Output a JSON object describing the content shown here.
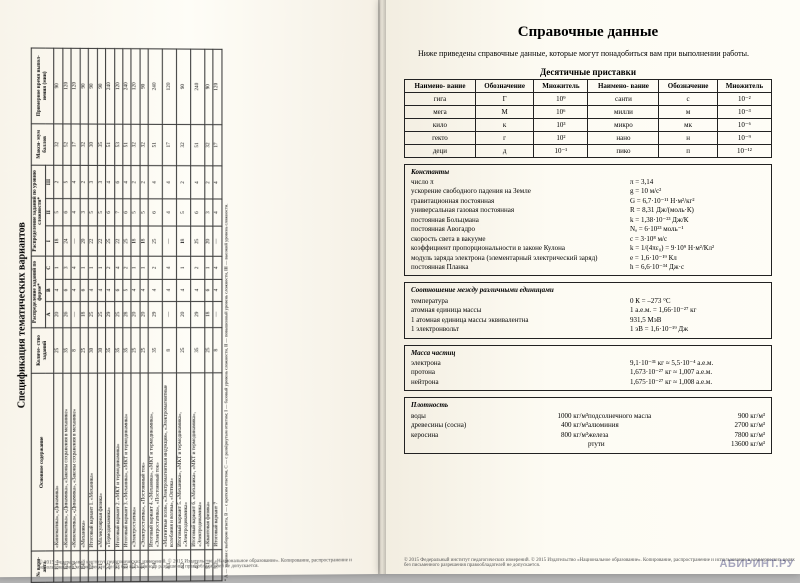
{
  "left": {
    "title": "Спецификация тематических вариантов",
    "headers": {
      "num": "№ вари-\nанта",
      "content": "Основное содержание",
      "count": "Количе-\nство\nзаданий",
      "byform": "Распределение\nзаданий по форме*",
      "bylevel": "Распределение заданий\nпо уровню сложности*",
      "max": "Макси-\nмум\nбаллов",
      "time": "Примерное\nвремя выпол-\nнения (мин)",
      "A": "А",
      "B": "В",
      "C": "С",
      "I": "I",
      "II": "II",
      "III": "III"
    },
    "rows": [
      {
        "n": "1.1",
        "c": "«Кинематика», «Динамика»",
        "k": "25",
        "a": "20",
        "b": "4",
        "c3": "1",
        "i": "18",
        "ii": "5",
        "iii": "2",
        "m": "32",
        "t": "90"
      },
      {
        "n": "1.2",
        "c": "«Кинематика», «Динамика», «Законы сохранения в механике»",
        "k": "35",
        "a": "26",
        "b": "6",
        "c3": "3",
        "i": "24",
        "ii": "6",
        "iii": "5",
        "m": "52",
        "t": "120"
      },
      {
        "n": "1.3",
        "c": "«Кинематика», «Динамика», «Законы сохранения в механике»",
        "k": "8",
        "a": "—",
        "b": "4",
        "c3": "4",
        "i": "—",
        "ii": "4",
        "iii": "4",
        "m": "17",
        "t": "120"
      },
      {
        "n": "1.4",
        "c": "«Механика»",
        "k": "25",
        "a": "18",
        "b": "6",
        "c3": "1",
        "i": "20",
        "ii": "3",
        "iii": "2",
        "m": "32",
        "t": "90"
      },
      {
        "n": "1.5",
        "c": "Итоговый вариант 1. «Механика»",
        "k": "30",
        "a": "25",
        "b": "4",
        "c3": "1",
        "i": "22",
        "ii": "5",
        "iii": "3",
        "m": "30",
        "t": "90"
      },
      {
        "n": "2.1",
        "c": "«Молекулярная физика»",
        "k": "30",
        "a": "25",
        "b": "4",
        "c3": "1",
        "i": "22",
        "ii": "5",
        "iii": "3",
        "m": "35",
        "t": "90"
      },
      {
        "n": "2.2",
        "c": "«Термодинамика»",
        "k": "35",
        "a": "29",
        "b": "4",
        "c3": "2",
        "i": "25",
        "ii": "6",
        "iii": "4",
        "m": "51",
        "t": "240"
      },
      {
        "n": "2.3",
        "c": "Итоговый вариант 2. «МКТ и термодинамика»",
        "k": "35",
        "a": "25",
        "b": "6",
        "c3": "4",
        "i": "22",
        "ii": "7",
        "iii": "6",
        "m": "53",
        "t": "120"
      },
      {
        "n": "3.1",
        "c": "Итоговый вариант 3. «Механика», «МКТ и термодинамика»",
        "k": "35",
        "a": "28",
        "b": "5",
        "c3": "2",
        "i": "25",
        "ii": "6",
        "iii": "4",
        "m": "51",
        "t": "240"
      },
      {
        "n": "3.2",
        "c": "«Электростатика»",
        "k": "25",
        "a": "20",
        "b": "4",
        "c3": "1",
        "i": "18",
        "ii": "5",
        "iii": "2",
        "m": "32",
        "t": "120"
      },
      {
        "n": "3.3",
        "c": "«Электростатика», «Постоянный ток»",
        "k": "25",
        "a": "20",
        "b": "4",
        "c3": "1",
        "i": "18",
        "ii": "5",
        "iii": "2",
        "m": "32",
        "t": "90"
      },
      {
        "n": "3.4",
        "c": "Итоговый вариант 4. «Механика», «МКТ и термодинамика», «Электростатика», «Постоянный ток»",
        "k": "35",
        "a": "29",
        "b": "4",
        "c3": "2",
        "i": "25",
        "ii": "6",
        "iii": "4",
        "m": "51",
        "t": "240"
      },
      {
        "n": "4.1",
        "c": "«Магнитные поля», «Электромагнитная индукция», «Электромагнитные колебания и волны», «Оптика»",
        "k": "8",
        "a": "—",
        "b": "4",
        "c3": "4",
        "i": "—",
        "ii": "4",
        "iii": "4",
        "m": "17",
        "t": "120"
      },
      {
        "n": "4.2",
        "c": "Итоговый вариант 5. «Механика», «МКТ и термодинамика», «Электродинамика»",
        "k": "25",
        "a": "20",
        "b": "4",
        "c3": "1",
        "i": "18",
        "ii": "5",
        "iii": "2",
        "m": "32",
        "t": "90"
      },
      {
        "n": "4.3",
        "c": "Итоговый вариант 6. «Механика», «МКТ и термодинамика», «Электродинамика»",
        "k": "35",
        "a": "29",
        "b": "4",
        "c3": "2",
        "i": "25",
        "ii": "6",
        "iii": "4",
        "m": "51",
        "t": "240"
      },
      {
        "n": "5.1",
        "c": "«Квантовая физика»",
        "k": "25",
        "a": "18",
        "b": "6",
        "c3": "1",
        "i": "20",
        "ii": "3",
        "iii": "2",
        "m": "32",
        "t": "90"
      },
      {
        "n": "5.2",
        "c": "Итоговый вариант 7",
        "k": "8",
        "a": "—",
        "b": "4",
        "c3": "4",
        "i": "—",
        "ii": "4",
        "iii": "4",
        "m": "17",
        "t": "120"
      }
    ],
    "footnote": "* А — задания с выбором ответа, В — с кратким ответом, С — с развёрнутым ответом;\nI — базовый уровень сложности, II — повышенный уровень сложности, III — высокий уровень сложности.",
    "copy": "© 2015 Федеральный институт педагогических измерений. © 2015 Издательство «Национальное образование».\nКопирование, распространение и использование в коммерческих целях без письменного разрешения правообладателей не допускается."
  },
  "right": {
    "title": "Справочные данные",
    "intro": "Ниже приведены справочные данные, которые могут понадобиться вам при выполнении работы.",
    "prefix_title": "Десятичные приставки",
    "prefix_headers": [
      "Наимено-\nвание",
      "Обозначение",
      "Множитель",
      "Наимено-\nвание",
      "Обозначение",
      "Множитель"
    ],
    "prefix_rows": [
      [
        "гига",
        "Г",
        "10⁹",
        "санти",
        "с",
        "10⁻²"
      ],
      [
        "мега",
        "М",
        "10⁶",
        "милли",
        "м",
        "10⁻³"
      ],
      [
        "кило",
        "к",
        "10³",
        "микро",
        "мк",
        "10⁻⁶"
      ],
      [
        "гекто",
        "г",
        "10²",
        "нано",
        "н",
        "10⁻⁹"
      ],
      [
        "деци",
        "д",
        "10⁻¹",
        "пико",
        "п",
        "10⁻¹²"
      ]
    ],
    "const_title": "Константы",
    "constants": [
      [
        "число π",
        "π = 3,14"
      ],
      [
        "ускорение свободного падения на Земле",
        "g = 10 м/с²"
      ],
      [
        "гравитационная постоянная",
        "G = 6,7·10⁻¹¹ Н·м²/кг²"
      ],
      [
        "универсальная газовая постоянная",
        "R = 8,31 Дж/(моль·К)"
      ],
      [
        "постоянная Больцмана",
        "k = 1,38·10⁻²³ Дж/К"
      ],
      [
        "постоянная Авогадро",
        "Nₐ = 6·10²³ моль⁻¹"
      ],
      [
        "скорость света в вакууме",
        "c = 3·10⁸ м/с"
      ],
      [
        "коэффициент пропорциональности в законе Кулона",
        "k = 1/(4πε₀) = 9·10⁹ Н·м²/Кл²"
      ],
      [
        "модуль заряда электрона (элементарный электрический заряд)",
        "e = 1,6·10⁻¹⁹ Кл"
      ],
      [
        "постоянная Планка",
        "h = 6,6·10⁻³⁴ Дж·с"
      ]
    ],
    "rel_title": "Соотношение между различными единицами",
    "relations": [
      [
        "температура",
        "0 К = –273 °С"
      ],
      [
        "атомная единица массы",
        "1 а.е.м. = 1,66·10⁻²⁷ кг"
      ],
      [
        "1 атомная единица массы эквивалентна",
        "931,5 МэВ"
      ],
      [
        "1 электронвольт",
        "1 эВ = 1,6·10⁻¹⁹ Дж"
      ]
    ],
    "mass_title": "Масса частиц",
    "masses": [
      [
        "электрона",
        "9,1·10⁻³¹ кг ≈ 5,5·10⁻⁴ а.е.м."
      ],
      [
        "протона",
        "1,673·10⁻²⁷ кг ≈ 1,007 а.е.м."
      ],
      [
        "нейтрона",
        "1,675·10⁻²⁷ кг ≈ 1,008 а.е.м."
      ]
    ],
    "dens_title": "Плотность",
    "densities_left": [
      [
        "воды",
        "1000 кг/м³"
      ],
      [
        "древесины (сосна)",
        "400 кг/м³"
      ],
      [
        "керосина",
        "800 кг/м³"
      ]
    ],
    "densities_right": [
      [
        "подсолнечного масла",
        "900 кг/м³"
      ],
      [
        "алюминия",
        "2700 кг/м³"
      ],
      [
        "железа",
        "7800 кг/м³"
      ],
      [
        "ртути",
        "13600 кг/м³"
      ]
    ],
    "copy": "© 2015 Федеральный институт педагогических измерений. © 2015 Издательство «Национальное образование».\nКопирование, распространение и использование в коммерческих целях без письменного разрешения правообладателей не допускается."
  },
  "watermark": "АБИРИНТ.РУ"
}
